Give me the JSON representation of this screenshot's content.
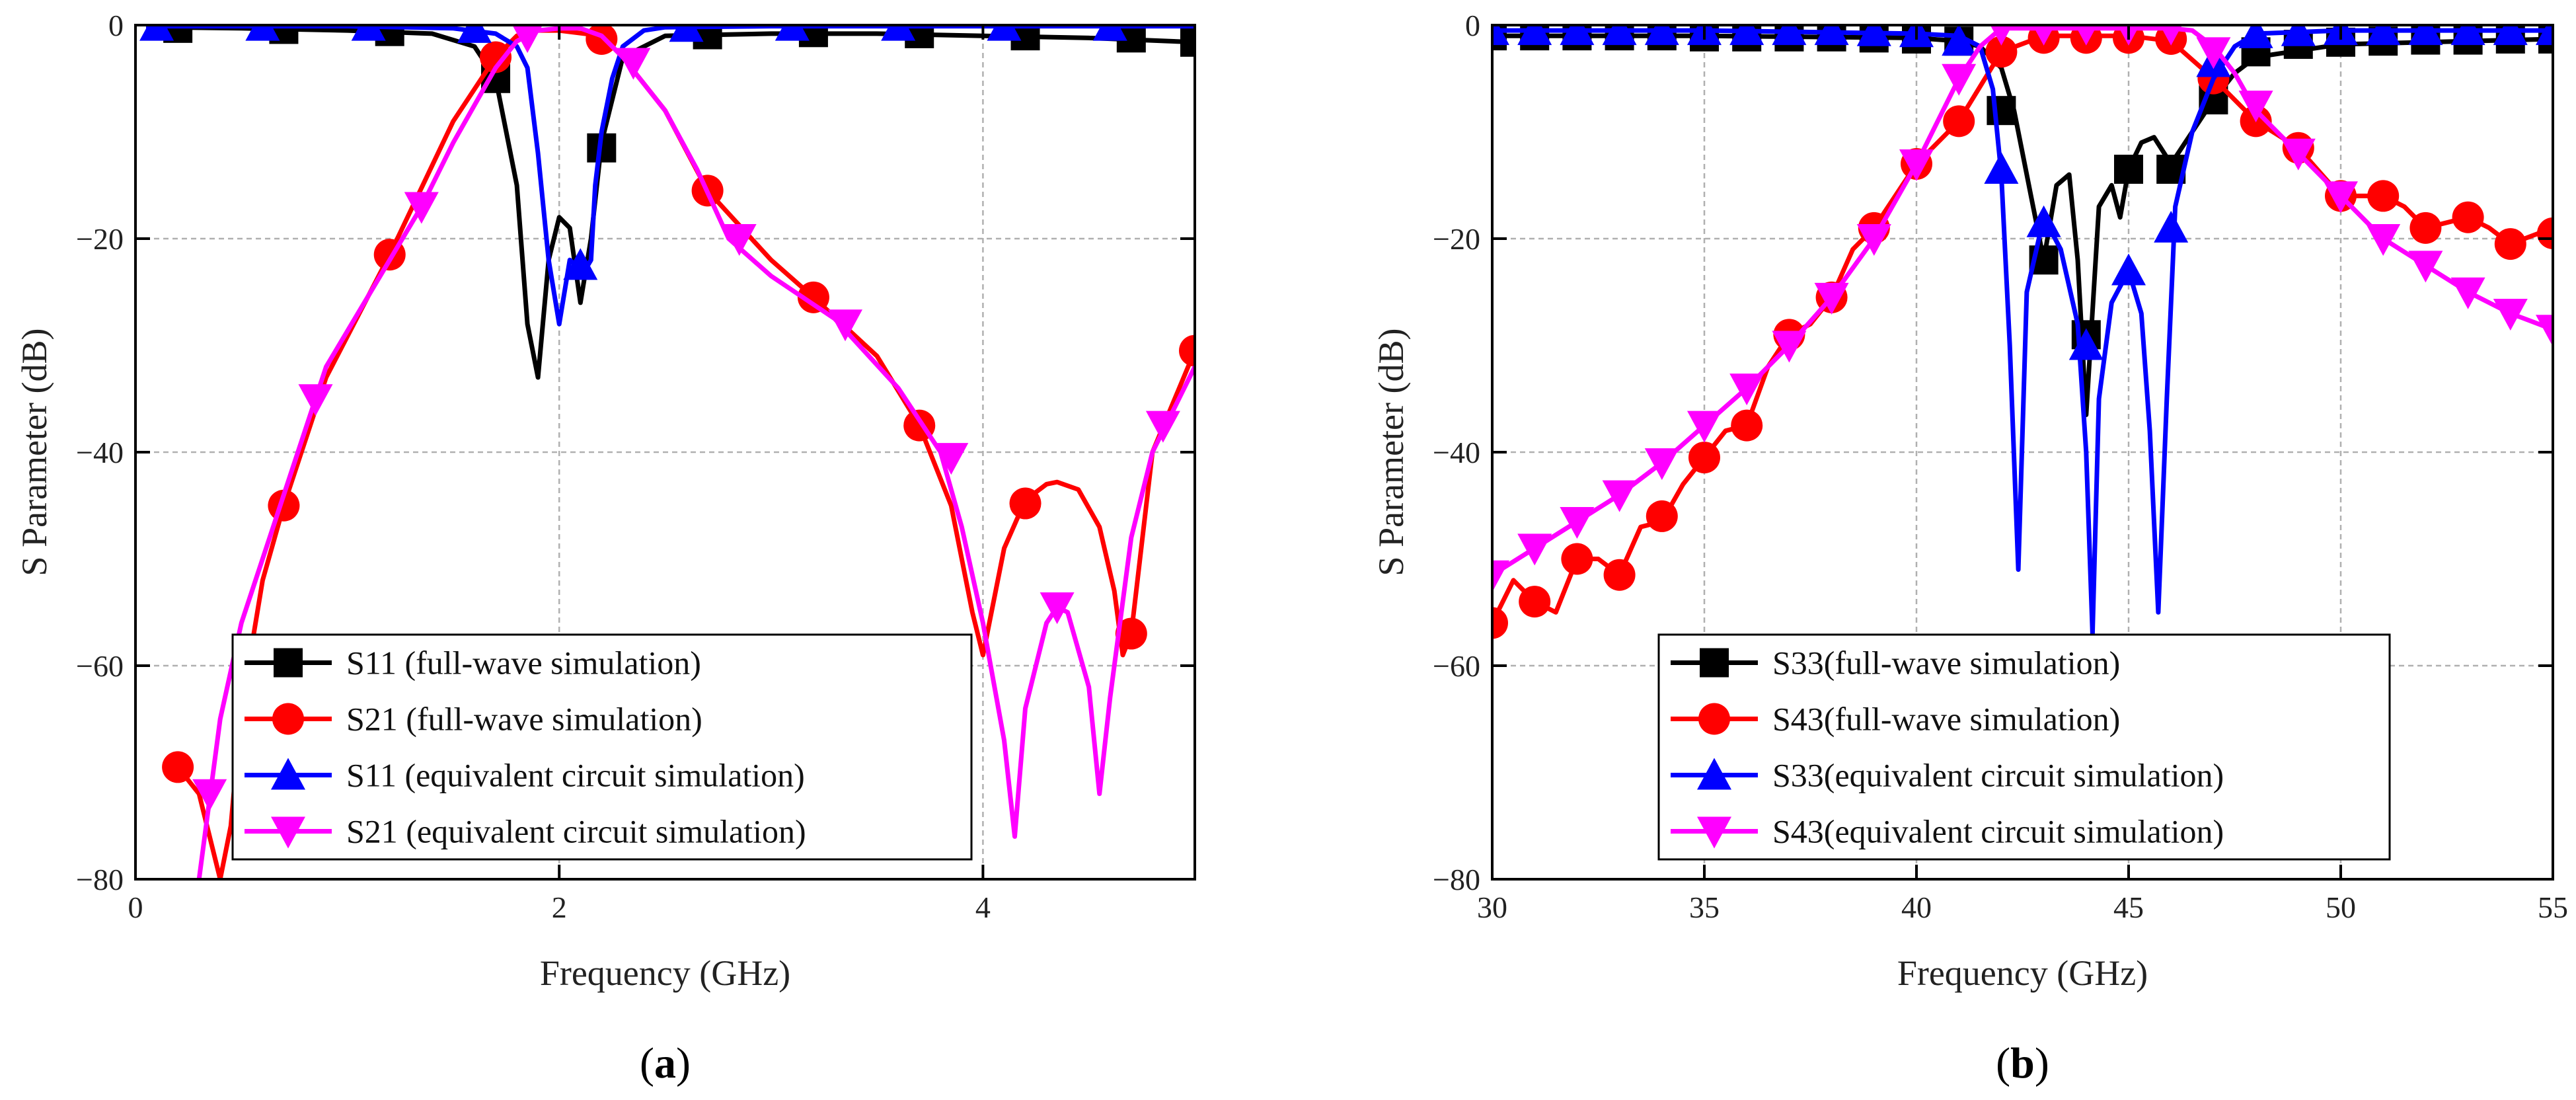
{
  "chart_data": [
    {
      "id": "a",
      "type": "line",
      "panel_label": "a",
      "xlabel": "Frequency (GHz)",
      "ylabel": "S Parameter (dB)",
      "xlim": [
        0,
        5
      ],
      "ylim": [
        -80,
        0
      ],
      "xticks": [
        0,
        2,
        4
      ],
      "yticks": [
        0,
        -20,
        -40,
        -60,
        -80
      ],
      "tick_labels_x": [
        "0",
        "2",
        "4"
      ],
      "tick_labels_y": [
        "0",
        "−20",
        "−40",
        "−60",
        "−80"
      ],
      "grid": true,
      "legend_position": "bottom-center",
      "series": [
        {
          "name": "S11 (full-wave simulation)",
          "color": "#000000",
          "marker": "square",
          "x": [
            0.1,
            0.5,
            1.0,
            1.4,
            1.6,
            1.7,
            1.8,
            1.85,
            1.9,
            1.95,
            2.0,
            2.05,
            2.1,
            2.15,
            2.2,
            2.3,
            2.5,
            3.0,
            3.5,
            4.0,
            4.5,
            5.0
          ],
          "y": [
            -0.2,
            -0.3,
            -0.5,
            -0.8,
            -2,
            -5,
            -15,
            -28,
            -33,
            -22,
            -18,
            -19,
            -26,
            -20,
            -11,
            -3,
            -1,
            -0.8,
            -0.8,
            -1,
            -1.2,
            -1.6
          ],
          "marker_x": [
            0.2,
            0.7,
            1.2,
            1.7,
            2.2,
            2.7,
            3.2,
            3.7,
            4.2,
            4.7,
            5.0
          ],
          "marker_y": [
            -0.3,
            -0.4,
            -0.6,
            -5,
            -11.5,
            -0.9,
            -0.7,
            -0.8,
            -1,
            -1.2,
            -1.6
          ]
        },
        {
          "name": "S21 (full-wave simulation)",
          "color": "#ff0000",
          "marker": "circle",
          "x": [
            0.2,
            0.3,
            0.35,
            0.4,
            0.45,
            0.5,
            0.6,
            0.7,
            0.9,
            1.2,
            1.5,
            1.7,
            1.8,
            1.9,
            2.0,
            2.2,
            2.3,
            2.5,
            2.7,
            3.0,
            3.2,
            3.5,
            3.7,
            3.85,
            3.95,
            4.0,
            4.1,
            4.2,
            4.3,
            4.35,
            4.45,
            4.55,
            4.62,
            4.66,
            4.7,
            4.8,
            5.0
          ],
          "y": [
            -69.5,
            -72,
            -76,
            -80,
            -75,
            -64,
            -52,
            -45,
            -33,
            -21.5,
            -9,
            -3,
            -1,
            -0.5,
            -0.5,
            -1,
            -3,
            -8,
            -15.5,
            -22,
            -25.5,
            -31,
            -37.5,
            -45,
            -55,
            -59,
            -49,
            -44.5,
            -43,
            -42.8,
            -43.5,
            -47,
            -53,
            -59,
            -57,
            -40,
            -30.5
          ],
          "marker_x": [
            0.2,
            0.7,
            1.2,
            1.7,
            2.2,
            2.7,
            3.2,
            3.7,
            4.2,
            4.7,
            5.0
          ],
          "marker_y": [
            -69.5,
            -45,
            -21.5,
            -3,
            -1.3,
            -15.5,
            -25.5,
            -37.5,
            -44.8,
            -57,
            -30.5
          ]
        },
        {
          "name": "S11 (equivalent circuit simulation)",
          "color": "#0000ff",
          "marker": "triangle-up",
          "x": [
            0.05,
            0.5,
            1.0,
            1.5,
            1.7,
            1.8,
            1.85,
            1.9,
            1.95,
            2.0,
            2.05,
            2.08,
            2.12,
            2.15,
            2.17,
            2.2,
            2.25,
            2.3,
            2.4,
            2.5,
            3.0,
            3.5,
            4.0,
            4.5,
            5.0
          ],
          "y": [
            -0.1,
            -0.1,
            -0.1,
            -0.3,
            -0.8,
            -2,
            -4,
            -12,
            -22,
            -28,
            -22,
            -22.5,
            -23,
            -22,
            -15,
            -10,
            -5,
            -2,
            -0.5,
            -0.2,
            -0.1,
            -0.1,
            -0.1,
            -0.1,
            -0.1
          ],
          "marker_x": [
            0.1,
            0.6,
            1.1,
            1.6,
            2.1,
            2.6,
            3.1,
            3.6,
            4.1,
            4.6
          ],
          "marker_y": [
            -0.1,
            -0.1,
            -0.1,
            -0.3,
            -22.5,
            -0.2,
            -0.1,
            -0.1,
            -0.1,
            -0.1
          ]
        },
        {
          "name": "S21 (equivalent circuit simulation)",
          "color": "#ff00ff",
          "marker": "triangle-down",
          "x": [
            0.3,
            0.4,
            0.5,
            0.7,
            0.9,
            1.2,
            1.35,
            1.5,
            1.7,
            1.8,
            1.9,
            2.0,
            2.1,
            2.2,
            2.3,
            2.5,
            2.65,
            2.8,
            3.0,
            3.3,
            3.6,
            3.8,
            3.9,
            4.0,
            4.1,
            4.15,
            4.2,
            4.3,
            4.35,
            4.4,
            4.5,
            4.55,
            4.6,
            4.7,
            4.8,
            5.0
          ],
          "y": [
            -80,
            -65,
            -56,
            -44,
            -32,
            -22,
            -17,
            -11,
            -4,
            -1.5,
            -0.5,
            -0.3,
            -0.3,
            -1,
            -3,
            -8,
            -13.5,
            -20,
            -23.5,
            -27.5,
            -34,
            -40,
            -47,
            -56,
            -67,
            -76,
            -64,
            -56,
            -54.5,
            -55,
            -62,
            -72,
            -63,
            -48,
            -40,
            -32
          ],
          "marker_x": [
            0.35,
            0.85,
            1.35,
            1.85,
            2.35,
            2.85,
            3.35,
            3.85,
            4.35,
            4.85
          ],
          "marker_y": [
            -72,
            -35,
            -17,
            -1,
            -3.5,
            -20,
            -28,
            -40.5,
            -54.5,
            -37.5
          ]
        }
      ]
    },
    {
      "id": "b",
      "type": "line",
      "panel_label": "b",
      "xlabel": "Frequency (GHz)",
      "ylabel": "S Parameter (dB)",
      "xlim": [
        30,
        55
      ],
      "ylim": [
        -80,
        0
      ],
      "xticks": [
        30,
        35,
        40,
        45,
        50,
        55
      ],
      "yticks": [
        0,
        -20,
        -40,
        -60,
        -80
      ],
      "tick_labels_x": [
        "30",
        "35",
        "40",
        "45",
        "50",
        "55"
      ],
      "tick_labels_y": [
        "0",
        "−20",
        "−40",
        "−60",
        "−80"
      ],
      "grid": true,
      "legend_position": "bottom-left",
      "series": [
        {
          "name": "S33(full-wave simulation)",
          "color": "#000000",
          "marker": "square",
          "x": [
            30,
            35,
            40,
            41,
            41.5,
            42,
            42.3,
            42.7,
            43,
            43.3,
            43.6,
            43.8,
            44,
            44.3,
            44.6,
            44.8,
            45,
            45.3,
            45.6,
            46,
            46.5,
            47,
            47.5,
            48,
            50,
            55
          ],
          "y": [
            -1,
            -1,
            -1.2,
            -1.5,
            -2,
            -4,
            -8,
            -16,
            -22,
            -15,
            -14,
            -22,
            -36.5,
            -17,
            -15,
            -18,
            -13.5,
            -11,
            -10.5,
            -13,
            -10,
            -7,
            -4.5,
            -3,
            -1.8,
            -1.3
          ],
          "marker_x": [
            30,
            31,
            32,
            33,
            34,
            35,
            36,
            37,
            38,
            39,
            40,
            41,
            42,
            43,
            44,
            45,
            46,
            47,
            48,
            49,
            50,
            51,
            52,
            53,
            54,
            55
          ],
          "marker_y": [
            -1,
            -1,
            -1,
            -1,
            -1,
            -1.1,
            -1.1,
            -1.1,
            -1.1,
            -1.2,
            -1.3,
            -1.5,
            -8,
            -22,
            -29,
            -13.5,
            -13.5,
            -7,
            -2.5,
            -1.8,
            -1.6,
            -1.5,
            -1.4,
            -1.4,
            -1.3,
            -1.3
          ]
        },
        {
          "name": "S43(full-wave simulation)",
          "color": "#ff0000",
          "marker": "circle",
          "x": [
            30,
            30.5,
            31,
            31.5,
            32,
            32.5,
            33,
            33.5,
            34,
            34.5,
            35,
            35.5,
            36,
            36.5,
            37,
            37.5,
            38,
            38.5,
            39,
            40,
            41,
            42,
            43,
            44,
            45,
            46,
            47,
            48,
            49,
            50,
            51,
            51.5,
            52,
            53,
            53.5,
            54,
            55
          ],
          "y": [
            -56,
            -52,
            -54,
            -55,
            -50,
            -50,
            -51.5,
            -47,
            -46.5,
            -43,
            -40.5,
            -38,
            -37.5,
            -32,
            -29,
            -28,
            -25.5,
            -21,
            -19,
            -13,
            -9,
            -2.5,
            -1,
            -1,
            -1,
            -1.5,
            -5,
            -9,
            -11.5,
            -16,
            -16,
            -17,
            -19,
            -18,
            -19,
            -20.5,
            -19
          ],
          "marker_x": [
            30,
            31,
            32,
            33,
            34,
            35,
            36,
            37,
            38,
            39,
            40,
            41,
            42,
            43,
            44,
            45,
            46,
            47,
            48,
            49,
            50,
            51,
            52,
            53,
            54,
            55
          ],
          "marker_y": [
            -56,
            -54,
            -50,
            -51.5,
            -46,
            -40.5,
            -37.5,
            -29,
            -25.5,
            -19,
            -13,
            -9,
            -2.5,
            -1.2,
            -1.2,
            -1.2,
            -1.3,
            -5,
            -9,
            -11.5,
            -16,
            -16,
            -19,
            -18,
            -20.5,
            -19.5
          ]
        },
        {
          "name": "S33(equivalent circuit simulation)",
          "color": "#0000ff",
          "marker": "triangle-up",
          "x": [
            30,
            35,
            40,
            41,
            41.5,
            41.8,
            42,
            42.2,
            42.4,
            42.6,
            43,
            43.4,
            43.8,
            44,
            44.15,
            44.3,
            44.6,
            45,
            45.3,
            45.5,
            45.7,
            45.9,
            46.1,
            46.5,
            47,
            47.5,
            48,
            50,
            55
          ],
          "y": [
            -0.5,
            -0.5,
            -0.8,
            -1,
            -2,
            -6,
            -14,
            -30,
            -51,
            -25,
            -18,
            -21,
            -28,
            -40,
            -57,
            -35,
            -26,
            -23,
            -27,
            -38,
            -55,
            -35,
            -17,
            -10,
            -5,
            -2,
            -0.8,
            -0.5,
            -0.5
          ],
          "marker_x": [
            30,
            31,
            32,
            33,
            34,
            35,
            36,
            37,
            38,
            39,
            40,
            41,
            42,
            43,
            44,
            45,
            46,
            47,
            48,
            49,
            50,
            51,
            52,
            53,
            54,
            55
          ],
          "marker_y": [
            -0.5,
            -0.5,
            -0.5,
            -0.5,
            -0.5,
            -0.5,
            -0.5,
            -0.5,
            -0.5,
            -0.6,
            -0.7,
            -1.5,
            -13.5,
            -18.5,
            -30,
            -23,
            -19,
            -3.5,
            -0.8,
            -0.6,
            -0.5,
            -0.5,
            -0.5,
            -0.5,
            -0.5,
            -0.5
          ]
        },
        {
          "name": "S43(equivalent circuit simulation)",
          "color": "#ff00ff",
          "marker": "triangle-down",
          "x": [
            30,
            31,
            32,
            33,
            34,
            35,
            36,
            37,
            38,
            39,
            40,
            41,
            41.5,
            42,
            43,
            44,
            45,
            46,
            46.5,
            47,
            47.5,
            48,
            49,
            50,
            51,
            52,
            53,
            54,
            55
          ],
          "y": [
            -51.5,
            -49,
            -46.5,
            -44,
            -41,
            -37.5,
            -34,
            -30,
            -25.5,
            -20,
            -13,
            -5,
            -2,
            -0.3,
            -0.3,
            -0.3,
            -0.3,
            -0.3,
            -0.5,
            -2,
            -4.5,
            -8,
            -12,
            -16,
            -20,
            -22.5,
            -25,
            -27,
            -28.5
          ],
          "marker_x": [
            30,
            31,
            32,
            33,
            34,
            35,
            36,
            37,
            38,
            39,
            40,
            41,
            42,
            43,
            44,
            45,
            46,
            47,
            48,
            49,
            50,
            51,
            52,
            53,
            54,
            55
          ],
          "marker_y": [
            -51.5,
            -49,
            -46.5,
            -44,
            -41,
            -37.5,
            -34,
            -30,
            -25.5,
            -20,
            -13,
            -5,
            -0.3,
            -0.3,
            -0.3,
            -0.3,
            -0.3,
            -2.5,
            -7.5,
            -12,
            -16,
            -20,
            -22.5,
            -25,
            -27,
            -28.5
          ]
        }
      ]
    }
  ]
}
